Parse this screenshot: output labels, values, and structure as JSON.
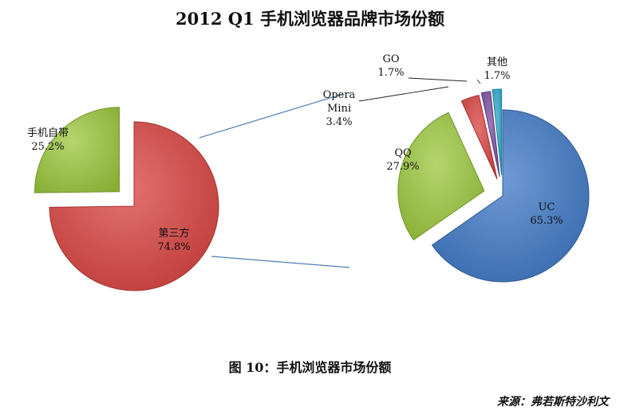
{
  "title": "2012 Q1 手机浏览器品牌市场份额",
  "caption": "图 10：手机浏览器市场份额",
  "source": "来源：弗若斯特沙利文",
  "colors": {
    "red": "#d84340",
    "green": "#9bc73d",
    "blue": "#3f78c6",
    "purple": "#7a4ea0",
    "cyan": "#2ea9cc",
    "connector": "#4f7fb8"
  },
  "chart_data": [
    {
      "type": "pie",
      "slices": [
        {
          "label": "手机自带",
          "value": 25.2,
          "value_label": "25.2%",
          "color": "#9bc73d",
          "exploded": true
        },
        {
          "label": "第三方",
          "value": 74.8,
          "value_label": "74.8%",
          "color": "#d84340",
          "exploded": false
        }
      ]
    },
    {
      "type": "pie",
      "slices": [
        {
          "label": "UC",
          "value": 65.3,
          "value_label": "65.3%",
          "color": "#3f78c6",
          "exploded": false
        },
        {
          "label": "QQ",
          "value": 27.9,
          "value_label": "27.9%",
          "color": "#9bc73d",
          "exploded": true
        },
        {
          "label": "Opera Mini",
          "value": 3.4,
          "value_label": "3.4%",
          "color": "#d84340",
          "exploded": true
        },
        {
          "label": "GO",
          "value": 1.7,
          "value_label": "1.7%",
          "color": "#7a4ea0",
          "exploded": true
        },
        {
          "label": "其他",
          "value": 1.7,
          "value_label": "1.7%",
          "color": "#2ea9cc",
          "exploded": true
        }
      ]
    }
  ]
}
